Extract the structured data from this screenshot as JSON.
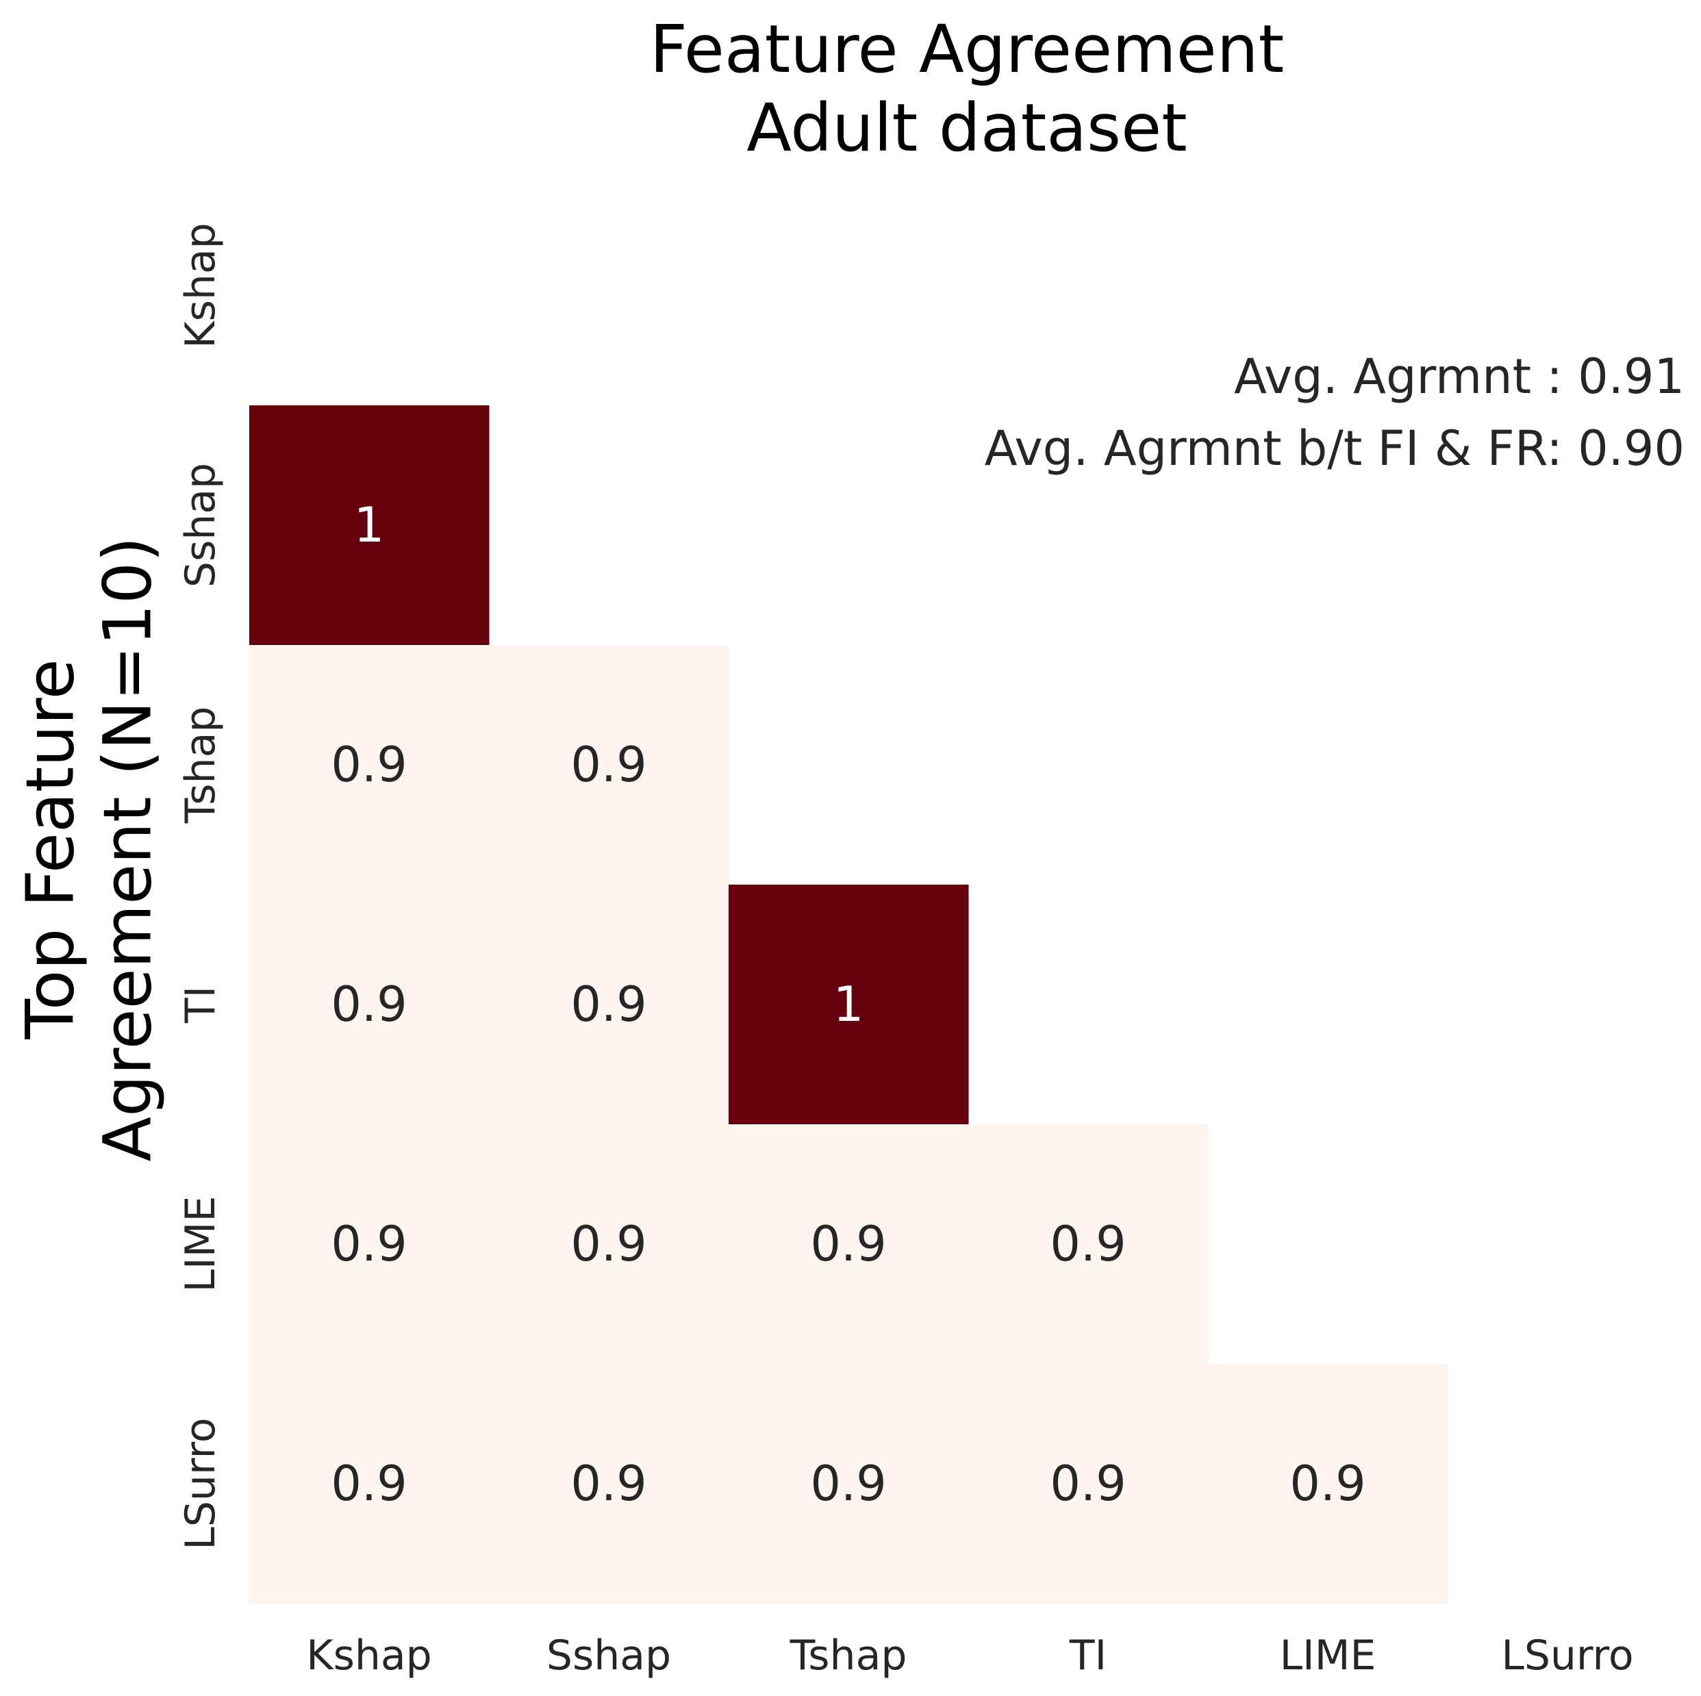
{
  "chart_data": {
    "type": "heatmap",
    "title": [
      "Feature Agreement",
      "Adult dataset"
    ],
    "ylabel": [
      "Top Feature",
      "Agreement (N=10)"
    ],
    "xlabel": "",
    "x_categories": [
      "Kshap",
      "Sshap",
      "Tshap",
      "TI",
      "LIME",
      "LSurro"
    ],
    "y_categories": [
      "Kshap",
      "Sshap",
      "Tshap",
      "TI",
      "LIME",
      "LSurro"
    ],
    "mask": "upper triangle including diagonal",
    "cells": [
      {
        "row": "Sshap",
        "col": "Kshap",
        "value": 1,
        "label": "1"
      },
      {
        "row": "Tshap",
        "col": "Kshap",
        "value": 0.9,
        "label": "0.9"
      },
      {
        "row": "Tshap",
        "col": "Sshap",
        "value": 0.9,
        "label": "0.9"
      },
      {
        "row": "TI",
        "col": "Kshap",
        "value": 0.9,
        "label": "0.9"
      },
      {
        "row": "TI",
        "col": "Sshap",
        "value": 0.9,
        "label": "0.9"
      },
      {
        "row": "TI",
        "col": "Tshap",
        "value": 1,
        "label": "1"
      },
      {
        "row": "LIME",
        "col": "Kshap",
        "value": 0.9,
        "label": "0.9"
      },
      {
        "row": "LIME",
        "col": "Sshap",
        "value": 0.9,
        "label": "0.9"
      },
      {
        "row": "LIME",
        "col": "Tshap",
        "value": 0.9,
        "label": "0.9"
      },
      {
        "row": "LIME",
        "col": "TI",
        "value": 0.9,
        "label": "0.9"
      },
      {
        "row": "LSurro",
        "col": "Kshap",
        "value": 0.9,
        "label": "0.9"
      },
      {
        "row": "LSurro",
        "col": "Sshap",
        "value": 0.9,
        "label": "0.9"
      },
      {
        "row": "LSurro",
        "col": "Tshap",
        "value": 0.9,
        "label": "0.9"
      },
      {
        "row": "LSurro",
        "col": "TI",
        "value": 0.9,
        "label": "0.9"
      },
      {
        "row": "LSurro",
        "col": "LIME",
        "value": 0.9,
        "label": "0.9"
      }
    ],
    "color_scale": {
      "low": 0.9,
      "high": 1,
      "low_color": "#fff5f0",
      "high_color": "#67000d"
    },
    "annotations": [
      "Avg. Agrmnt : 0.91",
      "Avg. Agrmnt b/t FI & FR: 0.90"
    ],
    "grid": false,
    "colorbar": false
  }
}
